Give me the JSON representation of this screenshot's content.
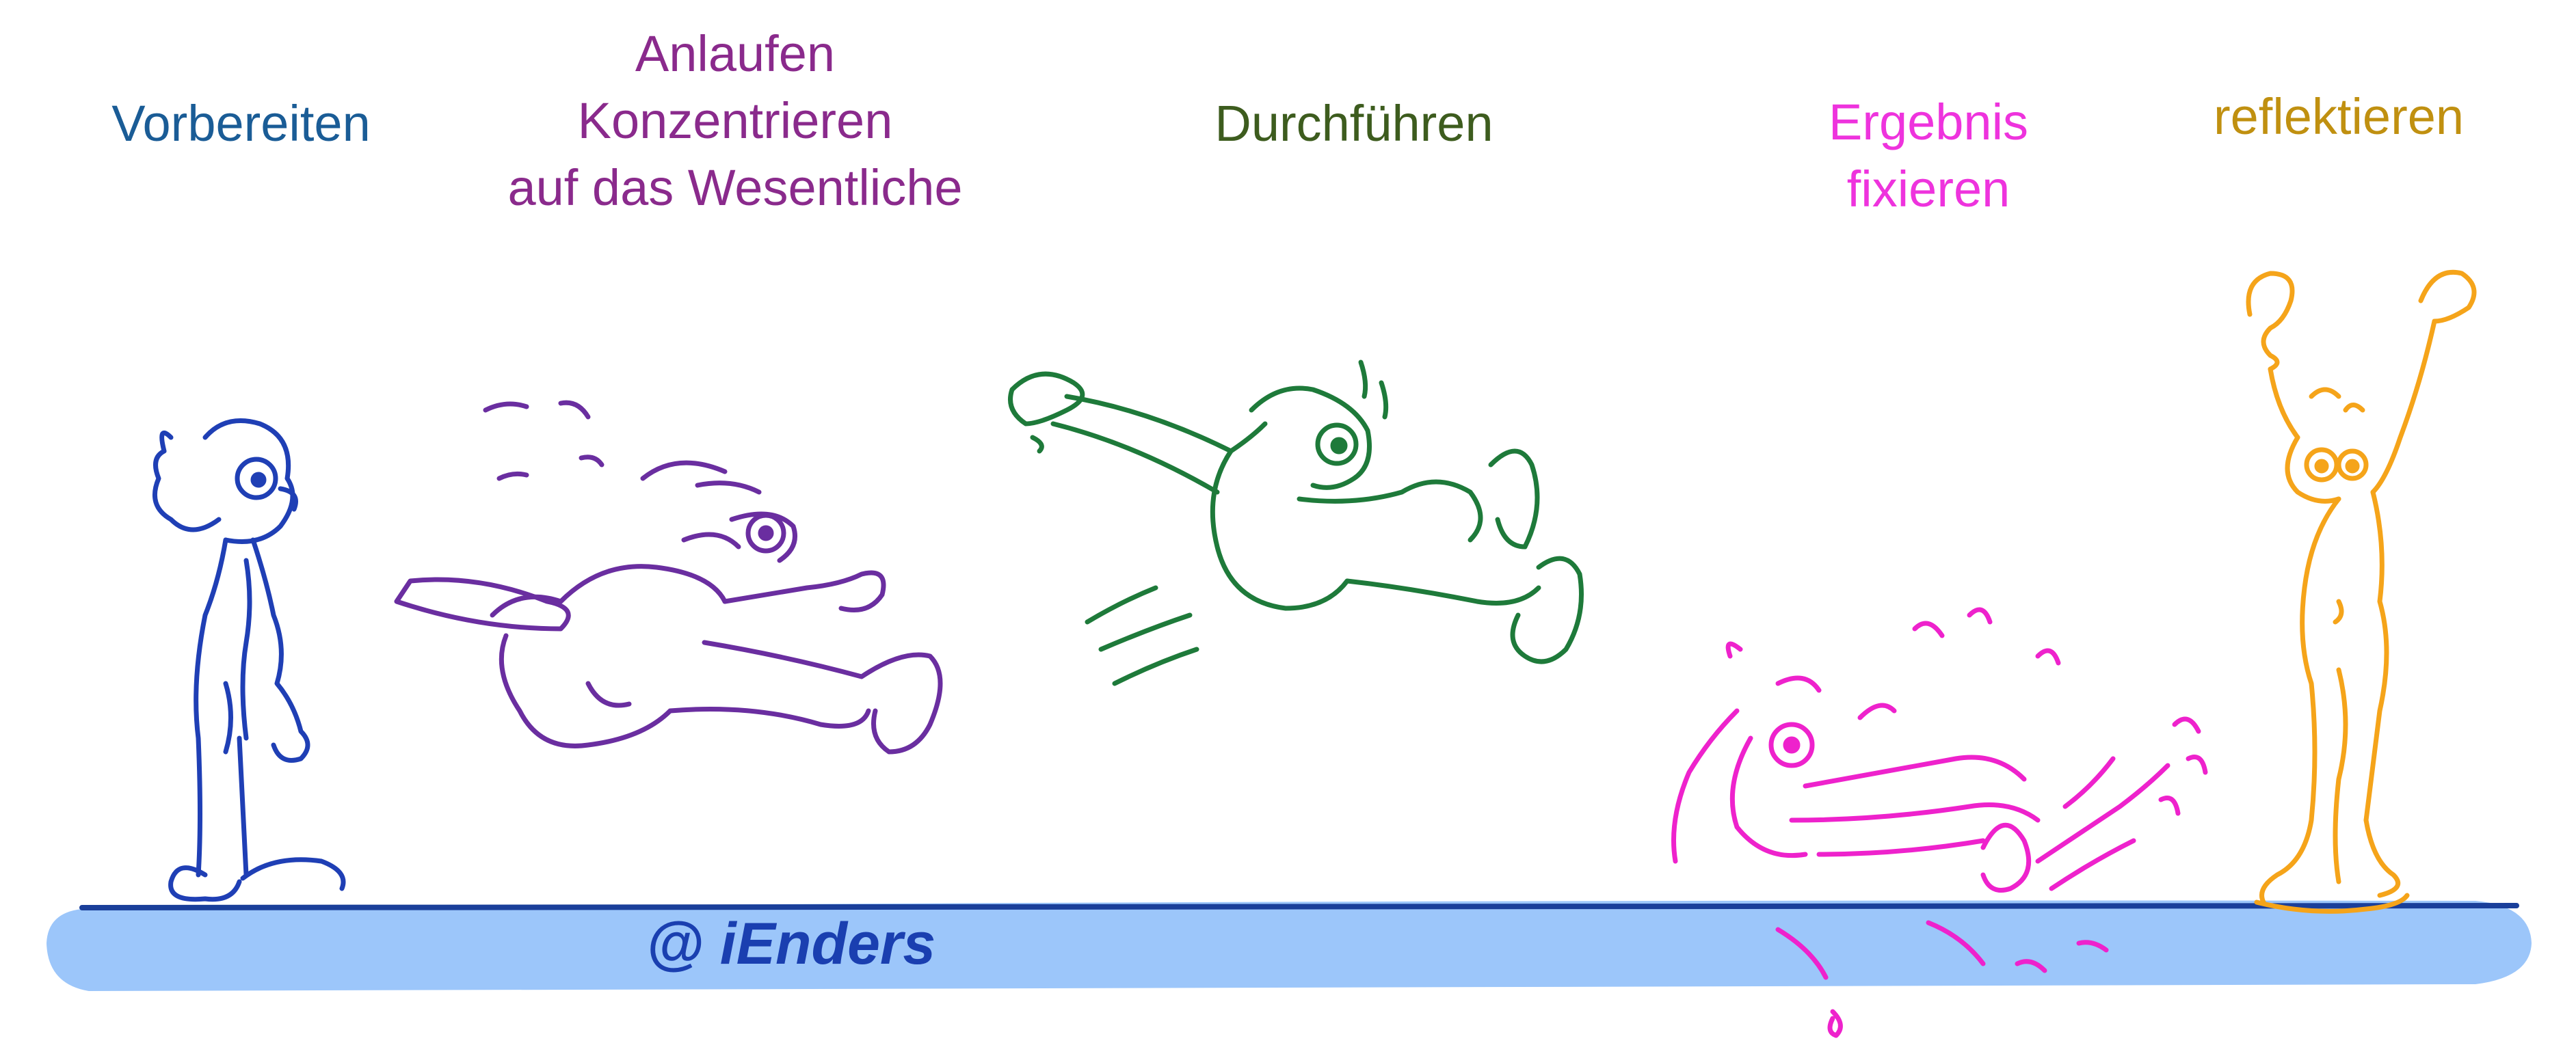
{
  "phases": [
    {
      "lines": [
        "Vorbereiten"
      ],
      "color": "#1a5c96"
    },
    {
      "lines": [
        "Anlaufen",
        "Konzentrieren",
        "auf das Wesentliche"
      ],
      "color": "#8a2a8c"
    },
    {
      "lines": [
        "Durchführen"
      ],
      "color": "#3d5c1e"
    },
    {
      "lines": [
        "Ergebnis",
        "fixieren"
      ],
      "color": "#ee33dd"
    },
    {
      "lines": [
        "reflektieren"
      ],
      "color": "#c09010"
    }
  ],
  "signature": "@ iEnders",
  "figure_colors": {
    "prepare": "#1f3fb5",
    "run": "#6a2ea0",
    "jump": "#1e7a3a",
    "land": "#ee22cc",
    "reflect": "#f5a41a"
  },
  "ground": {
    "band_color": "#9cc6fa",
    "line_color": "#1a3f9a"
  }
}
